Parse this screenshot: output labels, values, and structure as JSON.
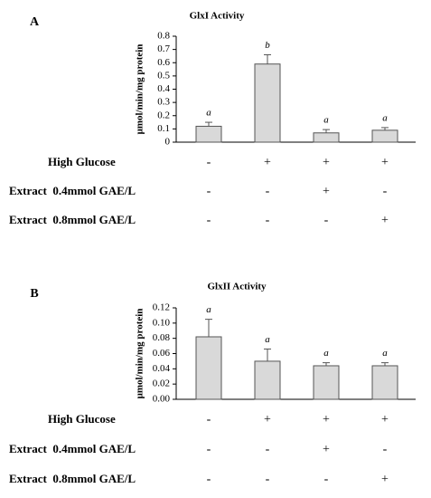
{
  "chart_data": [
    {
      "type": "bar",
      "panel_label": "A",
      "title": "GlxI Activity",
      "y_label": "μmol/min/mg protein",
      "values": [
        0.12,
        0.59,
        0.07,
        0.09
      ],
      "errors": [
        0.03,
        0.07,
        0.025,
        0.02
      ],
      "annotations": [
        "a",
        "b",
        "a",
        "a"
      ],
      "color": "#d9d9d9",
      "ylim": [
        0,
        0.8
      ],
      "yticks": [
        0,
        0.1,
        0.2,
        0.3,
        0.4,
        0.5,
        0.6,
        0.7,
        0.8
      ],
      "treatments": [
        {
          "label": "High Glucose",
          "signs": [
            "-",
            "+",
            "+",
            "+"
          ]
        },
        {
          "label": "Extract  0.4mmol GAE/L",
          "signs": [
            "-",
            "-",
            "+",
            "-"
          ]
        },
        {
          "label": "Extract  0.8mmol GAE/L",
          "signs": [
            "-",
            "-",
            "-",
            "+"
          ]
        }
      ]
    },
    {
      "type": "bar",
      "panel_label": "B",
      "title": "GlxII Activity",
      "y_label": "μmol/min/mg protein",
      "values": [
        0.082,
        0.05,
        0.044,
        0.044
      ],
      "errors": [
        0.023,
        0.016,
        0.004,
        0.004
      ],
      "annotations": [
        "a",
        "a",
        "a",
        "a"
      ],
      "color": "#d9d9d9",
      "ylim": [
        0,
        0.12
      ],
      "yticks": [
        {
          "value": 0,
          "label": "0.00"
        },
        {
          "value": 0.02,
          "label": "0.02"
        },
        {
          "value": 0.04,
          "label": "0.04"
        },
        {
          "value": 0.06,
          "label": "0.06"
        },
        {
          "value": 0.08,
          "label": "0.08"
        },
        {
          "value": 0.1,
          "label": "0.10"
        },
        {
          "value": 0.12,
          "label": "0.12"
        }
      ],
      "treatments": [
        {
          "label": "High Glucose",
          "signs": [
            "-",
            "+",
            "+",
            "+"
          ]
        },
        {
          "label": "Extract  0.4mmol GAE/L",
          "signs": [
            "-",
            "-",
            "+",
            "-"
          ]
        },
        {
          "label": "Extract  0.8mmol GAE/L",
          "signs": [
            "-",
            "-",
            "-",
            "+"
          ]
        }
      ]
    }
  ]
}
